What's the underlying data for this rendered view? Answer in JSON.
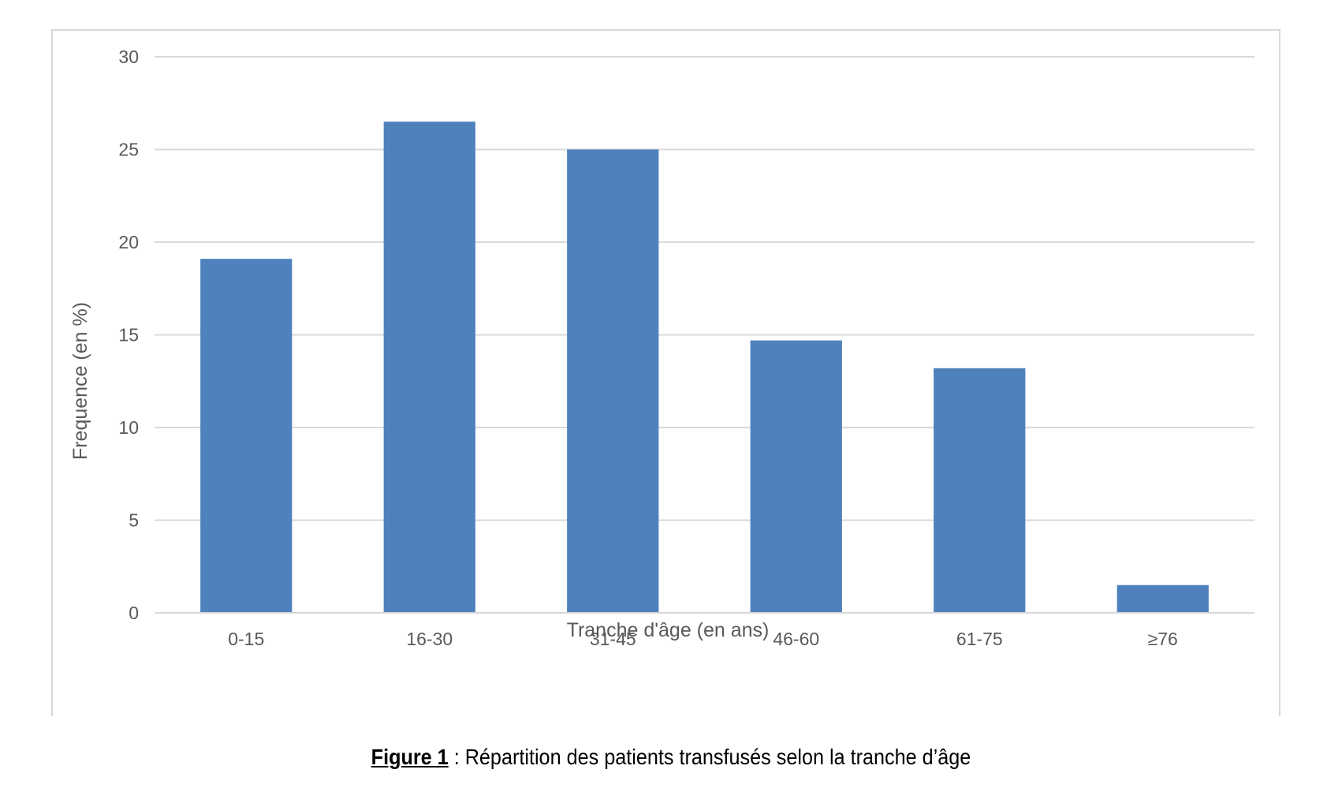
{
  "chart_data": {
    "type": "bar",
    "categories": [
      "0-15",
      "16-30",
      "31-45",
      "46-60",
      "61-75",
      "≥76"
    ],
    "values": [
      19.1,
      26.5,
      25.0,
      14.7,
      13.2,
      1.5
    ],
    "xlabel": "Tranche d'âge (en ans)",
    "ylabel": "Frequence (en %)",
    "ylim": [
      0,
      30
    ],
    "yticks": [
      0,
      5,
      10,
      15,
      20,
      25,
      30
    ],
    "grid": true,
    "legend": "none",
    "bar_color": "#4f81bd"
  },
  "caption": {
    "label": "Figure 1",
    "text": " : Répartition des patients transfusés selon la tranche d’âge"
  }
}
